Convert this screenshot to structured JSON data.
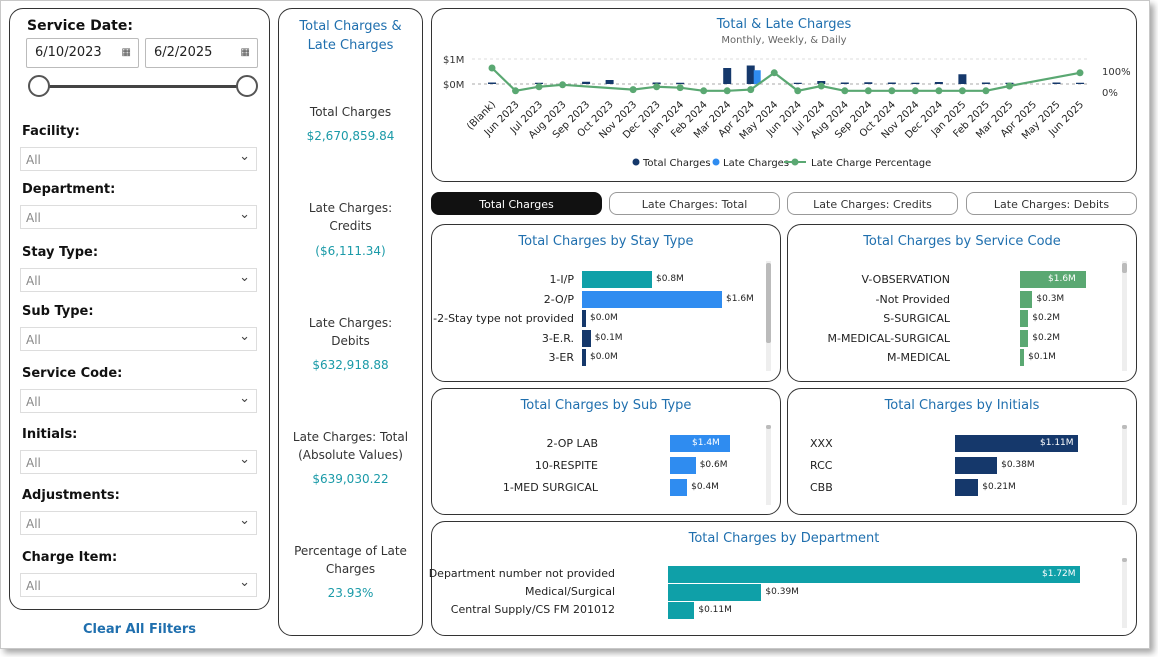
{
  "filters": {
    "service_date_label": "Service Date:",
    "start_date": "6/10/2023",
    "end_date": "6/2/2025",
    "calendar_icon": "calendar-icon",
    "slicers": [
      {
        "label": "Facility:",
        "value": "All"
      },
      {
        "label": "Department:",
        "value": "All"
      },
      {
        "label": "Stay Type:",
        "value": "All"
      },
      {
        "label": "Sub Type:",
        "value": "All"
      },
      {
        "label": "Service Code:",
        "value": "All"
      },
      {
        "label": "Initials:",
        "value": "All"
      },
      {
        "label": "Adjustments:",
        "value": "All"
      },
      {
        "label": "Charge Item:",
        "value": "All"
      }
    ],
    "clear_label": "Clear All Filters"
  },
  "kpis": {
    "title": "Total Charges & Late Charges",
    "items": [
      {
        "label": "Total Charges",
        "value": "$2,670,859.84"
      },
      {
        "label": "Late Charges: Credits",
        "value": "($6,111.34)"
      },
      {
        "label": "Late Charges: Debits",
        "value": "$632,918.88"
      },
      {
        "label": "Late Charges: Total (Absolute Values)",
        "value": "$639,030.22"
      },
      {
        "label": "Percentage of Late Charges",
        "value": "23.93%"
      }
    ]
  },
  "tabs": [
    "Total Charges",
    "Late Charges: Total",
    "Late Charges: Credits",
    "Late Charges: Debits"
  ],
  "active_tab": "Total Charges",
  "colors": {
    "accent": "#1f6fae",
    "navy": "#15386b",
    "blue": "#2f8cf0",
    "green": "#5aa872",
    "teal": "#0fa0a8"
  },
  "chart_data": [
    {
      "type": "line",
      "title": "Total & Late Charges",
      "subtitle": "Monthly, Weekly, & Daily",
      "y_left_ticks": [
        "$1M",
        "$0M"
      ],
      "y_right_ticks": [
        "100%",
        "0%"
      ],
      "categories": [
        "(Blank)",
        "Jun 2023",
        "Jul 2023",
        "Aug 2023",
        "Sep 2023",
        "Oct 2023",
        "Nov 2023",
        "Dec 2023",
        "Jan 2024",
        "Feb 2024",
        "Mar 2024",
        "Apr 2024",
        "May 2024",
        "Jun 2024",
        "Jul 2024",
        "Aug 2024",
        "Sep 2024",
        "Oct 2024",
        "Nov 2024",
        "Dec 2024",
        "Jan 2025",
        "Feb 2025",
        "Mar 2025",
        "Apr 2025",
        "May 2025",
        "Jun 2025"
      ],
      "series": [
        {
          "name": "Total Charges",
          "values": [
            0.02,
            0.0,
            0.01,
            0.0,
            0.05,
            0.12,
            0.0,
            0.02,
            0.01,
            0.0,
            0.6,
            0.7,
            0.0,
            0.01,
            0.08,
            0.02,
            0.03,
            0.02,
            0.01,
            0.04,
            0.35,
            0.02,
            0.01,
            0.0,
            0.02,
            0.01
          ]
        },
        {
          "name": "Late Charges",
          "values": [
            0.0,
            0.0,
            0.0,
            0.0,
            0.0,
            0.0,
            0.0,
            0.0,
            0.0,
            0.0,
            0.0,
            0.55,
            0.0,
            0.0,
            0.0,
            0.0,
            0.0,
            0.0,
            0.0,
            0.0,
            0.0,
            0.0,
            0.0,
            0.0,
            0.0,
            0.0
          ]
        },
        {
          "name": "Late Charge Percentage",
          "values": [
            100,
            5,
            22,
            30,
            null,
            null,
            10,
            22,
            18,
            5,
            5,
            10,
            80,
            5,
            25,
            5,
            5,
            5,
            5,
            5,
            5,
            5,
            25,
            null,
            null,
            80
          ]
        }
      ],
      "legend": [
        "Total Charges",
        "Late Charges",
        "Late Charge Percentage"
      ]
    },
    {
      "type": "bar",
      "title": "Total Charges by Stay Type",
      "categories": [
        "1-I/P",
        "2-O/P",
        "-2-Stay type not provided",
        "3-E.R.",
        "3-ER"
      ],
      "values": [
        0.8,
        1.6,
        0.0,
        0.1,
        0.0
      ],
      "labels": [
        "$0.8M",
        "$1.6M",
        "$0.0M",
        "$0.1M",
        "$0.0M"
      ],
      "colors": [
        "#0fa0a8",
        "#2f8cf0",
        "#15386b",
        "#15386b",
        "#15386b"
      ],
      "max": 1.6
    },
    {
      "type": "bar",
      "title": "Total Charges by Service Code",
      "categories": [
        "V-OBSERVATION",
        "-Not Provided",
        "S-SURGICAL",
        "M-MEDICAL-SURGICAL",
        "M-MEDICAL"
      ],
      "values": [
        1.6,
        0.3,
        0.2,
        0.2,
        0.1
      ],
      "labels": [
        "$1.6M",
        "$0.3M",
        "$0.2M",
        "$0.2M",
        "$0.1M"
      ],
      "colors": [
        "#5aa872",
        "#5aa872",
        "#5aa872",
        "#5aa872",
        "#5aa872"
      ],
      "max": 1.6
    },
    {
      "type": "bar",
      "title": "Total Charges by Sub Type",
      "categories": [
        "2-OP LAB",
        "10-RESPITE",
        "1-MED SURGICAL"
      ],
      "values": [
        1.4,
        0.6,
        0.4
      ],
      "labels": [
        "$1.4M",
        "$0.6M",
        "$0.4M"
      ],
      "colors": [
        "#2f8cf0",
        "#2f8cf0",
        "#2f8cf0"
      ],
      "max": 1.4
    },
    {
      "type": "bar",
      "title": "Total Charges by Initials",
      "categories": [
        "XXX",
        "RCC",
        "CBB"
      ],
      "values": [
        1.11,
        0.38,
        0.21
      ],
      "labels": [
        "$1.11M",
        "$0.38M",
        "$0.21M"
      ],
      "colors": [
        "#15386b",
        "#15386b",
        "#15386b"
      ],
      "max": 1.11
    },
    {
      "type": "bar",
      "title": "Total Charges by Department",
      "categories": [
        "Department number not provided",
        "Medical/Surgical",
        "Central Supply/CS FM 201012"
      ],
      "values": [
        1.72,
        0.39,
        0.11
      ],
      "labels": [
        "$1.72M",
        "$0.39M",
        "$0.11M"
      ],
      "colors": [
        "#0fa0a8",
        "#0fa0a8",
        "#0fa0a8"
      ],
      "max": 1.72
    }
  ]
}
